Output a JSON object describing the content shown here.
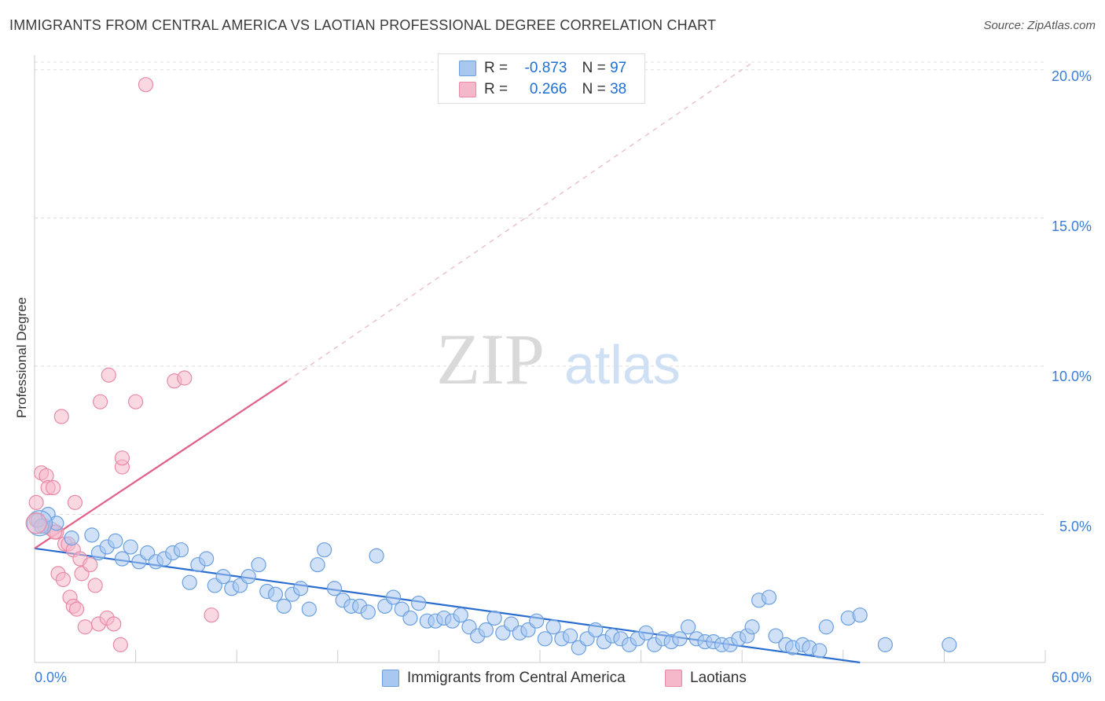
{
  "header": {
    "title": "IMMIGRANTS FROM CENTRAL AMERICA VS LAOTIAN PROFESSIONAL DEGREE CORRELATION CHART",
    "source": "Source: ZipAtlas.com"
  },
  "watermark": {
    "zip": "ZIP",
    "atlas": "atlas"
  },
  "legend_stats": [
    {
      "r_label": "R =",
      "r_value": "-0.873",
      "n_label": "N =",
      "n_value": "97",
      "color": "#a9c8f0"
    },
    {
      "r_label": "R =",
      "r_value": "0.266",
      "n_label": "N =",
      "n_value": "38",
      "color": "#f5b8ca"
    }
  ],
  "chart_data": {
    "type": "scatter",
    "xlabel": "",
    "ylabel": "Professional Degree",
    "xlim": [
      0,
      60
    ],
    "ylim": [
      0,
      20.5
    ],
    "x_tick_labels": [
      "0.0%",
      "60.0%"
    ],
    "y_tick_labels": [
      "5.0%",
      "10.0%",
      "15.0%",
      "20.0%"
    ],
    "y_ticks": [
      5,
      10,
      15,
      20
    ],
    "grid": true,
    "legend_position": "bottom-center",
    "series": [
      {
        "name": "Immigrants from Central America",
        "color": "#6a9fe0",
        "fill": "#a9c8f0",
        "trend": {
          "x": [
            0,
            49
          ],
          "y": [
            3.85,
            0.0
          ],
          "color": "#2a6dcf"
        },
        "points": [
          [
            0.2,
            4.8
          ],
          [
            0.4,
            4.6
          ],
          [
            0.8,
            5.0
          ],
          [
            1.3,
            4.7
          ],
          [
            2.2,
            4.2
          ],
          [
            3.4,
            4.3
          ],
          [
            3.8,
            3.7
          ],
          [
            4.3,
            3.9
          ],
          [
            4.8,
            4.1
          ],
          [
            5.2,
            3.5
          ],
          [
            5.7,
            3.9
          ],
          [
            6.2,
            3.4
          ],
          [
            6.7,
            3.7
          ],
          [
            7.2,
            3.4
          ],
          [
            7.7,
            3.5
          ],
          [
            8.2,
            3.7
          ],
          [
            8.7,
            3.8
          ],
          [
            9.2,
            2.7
          ],
          [
            9.7,
            3.3
          ],
          [
            10.2,
            3.5
          ],
          [
            10.7,
            2.6
          ],
          [
            11.2,
            2.9
          ],
          [
            11.7,
            2.5
          ],
          [
            12.2,
            2.6
          ],
          [
            12.7,
            2.9
          ],
          [
            13.3,
            3.3
          ],
          [
            13.8,
            2.4
          ],
          [
            14.3,
            2.3
          ],
          [
            14.8,
            1.9
          ],
          [
            15.3,
            2.3
          ],
          [
            15.8,
            2.5
          ],
          [
            16.3,
            1.8
          ],
          [
            16.8,
            3.3
          ],
          [
            17.2,
            3.8
          ],
          [
            17.8,
            2.5
          ],
          [
            18.3,
            2.1
          ],
          [
            18.8,
            1.9
          ],
          [
            19.3,
            1.9
          ],
          [
            19.8,
            1.7
          ],
          [
            20.3,
            3.6
          ],
          [
            20.8,
            1.9
          ],
          [
            21.3,
            2.2
          ],
          [
            21.8,
            1.8
          ],
          [
            22.3,
            1.5
          ],
          [
            22.8,
            2.0
          ],
          [
            23.3,
            1.4
          ],
          [
            23.8,
            1.4
          ],
          [
            24.3,
            1.5
          ],
          [
            24.8,
            1.4
          ],
          [
            25.3,
            1.6
          ],
          [
            25.8,
            1.2
          ],
          [
            26.3,
            0.9
          ],
          [
            26.8,
            1.1
          ],
          [
            27.3,
            1.5
          ],
          [
            27.8,
            1.0
          ],
          [
            28.3,
            1.3
          ],
          [
            28.8,
            1.0
          ],
          [
            29.3,
            1.1
          ],
          [
            29.8,
            1.4
          ],
          [
            30.3,
            0.8
          ],
          [
            30.8,
            1.2
          ],
          [
            31.3,
            0.8
          ],
          [
            31.8,
            0.9
          ],
          [
            32.3,
            0.5
          ],
          [
            32.8,
            0.8
          ],
          [
            33.3,
            1.1
          ],
          [
            33.8,
            0.7
          ],
          [
            34.3,
            0.9
          ],
          [
            34.8,
            0.8
          ],
          [
            35.3,
            0.6
          ],
          [
            35.8,
            0.8
          ],
          [
            36.3,
            1.0
          ],
          [
            36.8,
            0.6
          ],
          [
            37.3,
            0.8
          ],
          [
            37.8,
            0.7
          ],
          [
            38.3,
            0.8
          ],
          [
            38.8,
            1.2
          ],
          [
            39.3,
            0.8
          ],
          [
            39.8,
            0.7
          ],
          [
            40.3,
            0.7
          ],
          [
            40.8,
            0.6
          ],
          [
            41.3,
            0.6
          ],
          [
            41.8,
            0.8
          ],
          [
            42.3,
            0.9
          ],
          [
            42.6,
            1.2
          ],
          [
            43.0,
            2.1
          ],
          [
            43.6,
            2.2
          ],
          [
            44.0,
            0.9
          ],
          [
            44.6,
            0.6
          ],
          [
            45.0,
            0.5
          ],
          [
            45.6,
            0.6
          ],
          [
            46.0,
            0.5
          ],
          [
            46.6,
            0.4
          ],
          [
            47.0,
            1.2
          ],
          [
            48.3,
            1.5
          ],
          [
            49.0,
            1.6
          ],
          [
            50.5,
            0.6
          ],
          [
            54.3,
            0.6
          ]
        ]
      },
      {
        "name": "Laotians",
        "color": "#e88aa6",
        "fill": "#f5b8ca",
        "trend": {
          "x": [
            0,
            15
          ],
          "y": [
            3.85,
            9.5
          ],
          "extend_to": [
            42.5,
            20.2
          ],
          "color": "#e0608a"
        },
        "points": [
          [
            0.1,
            4.8
          ],
          [
            0.1,
            5.4
          ],
          [
            0.4,
            6.4
          ],
          [
            0.6,
            4.6
          ],
          [
            0.7,
            6.3
          ],
          [
            0.8,
            5.9
          ],
          [
            1.0,
            4.5
          ],
          [
            1.1,
            5.9
          ],
          [
            1.3,
            4.4
          ],
          [
            1.4,
            3.0
          ],
          [
            1.6,
            8.3
          ],
          [
            1.7,
            2.8
          ],
          [
            1.8,
            4.0
          ],
          [
            2.0,
            4.0
          ],
          [
            2.1,
            2.2
          ],
          [
            2.3,
            3.8
          ],
          [
            2.3,
            1.9
          ],
          [
            2.4,
            5.4
          ],
          [
            2.5,
            1.8
          ],
          [
            2.7,
            3.5
          ],
          [
            2.8,
            3.0
          ],
          [
            3.0,
            1.2
          ],
          [
            3.3,
            3.3
          ],
          [
            3.6,
            2.6
          ],
          [
            3.8,
            1.3
          ],
          [
            3.9,
            8.8
          ],
          [
            4.3,
            1.5
          ],
          [
            4.4,
            9.7
          ],
          [
            4.7,
            1.3
          ],
          [
            5.1,
            0.6
          ],
          [
            5.2,
            6.6
          ],
          [
            5.2,
            6.9
          ],
          [
            6.0,
            8.8
          ],
          [
            6.6,
            19.5
          ],
          [
            8.3,
            9.5
          ],
          [
            8.9,
            9.6
          ],
          [
            10.5,
            1.6
          ],
          [
            1.2,
            4.4
          ]
        ]
      }
    ]
  }
}
